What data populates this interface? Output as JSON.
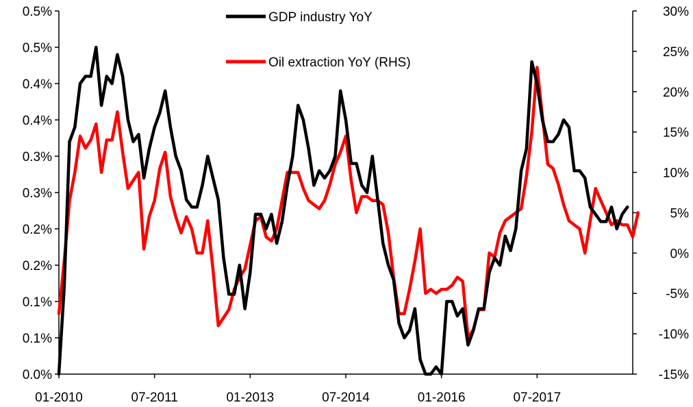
{
  "chart_data": {
    "type": "line",
    "title": "",
    "xlabel": "",
    "ylabel": "",
    "x_tick_labels": [
      "01-2010",
      "07-2011",
      "01-2013",
      "07-2014",
      "01-2016",
      "07-2017"
    ],
    "x_tick_months": [
      0,
      18,
      36,
      54,
      72,
      90
    ],
    "left_axis": {
      "tick_labels": [
        "0.0%",
        "0.1%",
        "0.1%",
        "0.2%",
        "0.2%",
        "0.3%",
        "0.3%",
        "0.4%",
        "0.4%",
        "0.5%",
        "0.5%"
      ],
      "ylim": [
        0,
        0.5
      ]
    },
    "right_axis": {
      "tick_labels": [
        "-15%",
        "-10%",
        "-5%",
        "0%",
        "5%",
        "10%",
        "15%",
        "20%",
        "25%",
        "30%"
      ],
      "ylim": [
        -15,
        30
      ]
    },
    "legend_position": "top-center",
    "series": [
      {
        "name": "GDP industry YoY",
        "axis": "left",
        "color": "#000000",
        "start_month": 0,
        "values": [
          0.0,
          0.12,
          0.32,
          0.34,
          0.4,
          0.41,
          0.41,
          0.45,
          0.37,
          0.41,
          0.4,
          0.44,
          0.41,
          0.35,
          0.32,
          0.33,
          0.27,
          0.31,
          0.34,
          0.36,
          0.39,
          0.34,
          0.3,
          0.28,
          0.24,
          0.23,
          0.23,
          0.26,
          0.3,
          0.27,
          0.24,
          0.16,
          0.11,
          0.11,
          0.15,
          0.09,
          0.14,
          0.22,
          0.22,
          0.2,
          0.22,
          0.18,
          0.21,
          0.26,
          0.3,
          0.37,
          0.35,
          0.31,
          0.26,
          0.28,
          0.27,
          0.28,
          0.3,
          0.39,
          0.35,
          0.29,
          0.29,
          0.26,
          0.25,
          0.3,
          0.24,
          0.18,
          0.15,
          0.13,
          0.07,
          0.05,
          0.06,
          0.09,
          0.02,
          0.0,
          0.0,
          0.01,
          0.0,
          0.1,
          0.1,
          0.08,
          0.09,
          0.04,
          0.06,
          0.09,
          0.09,
          0.14,
          0.16,
          0.15,
          0.19,
          0.17,
          0.2,
          0.28,
          0.31,
          0.43,
          0.4,
          0.35,
          0.32,
          0.32,
          0.33,
          0.35,
          0.34,
          0.28,
          0.28,
          0.27,
          0.23,
          0.22,
          0.21,
          0.21,
          0.23,
          0.2,
          0.22,
          0.23
        ]
      },
      {
        "name": "Oil extraction YoY (RHS)",
        "axis": "right",
        "color": "#ff0000",
        "start_month": 0,
        "values": [
          -7.5,
          -1.0,
          6.5,
          10.0,
          14.5,
          13.0,
          14.0,
          16.0,
          10.0,
          14.0,
          14.0,
          17.5,
          12.5,
          8.0,
          9.0,
          10.0,
          0.5,
          4.5,
          6.5,
          10.5,
          12.5,
          7.0,
          4.5,
          2.5,
          4.5,
          3.0,
          0.0,
          0.0,
          4.0,
          -2.0,
          -9.0,
          -8.0,
          -7.0,
          -4.5,
          -3.0,
          -2.0,
          1.0,
          4.0,
          4.5,
          2.0,
          1.5,
          3.0,
          6.5,
          10.0,
          10.0,
          10.0,
          8.0,
          6.5,
          6.0,
          5.5,
          6.5,
          8.5,
          11.0,
          12.5,
          14.5,
          9.0,
          5.0,
          7.0,
          7.0,
          6.5,
          6.5,
          6.0,
          2.5,
          -3.0,
          -7.5,
          -7.5,
          -4.5,
          -1.0,
          3.0,
          -5.0,
          -4.5,
          -5.0,
          -4.5,
          -4.5,
          -4.0,
          -3.0,
          -3.5,
          -10.5,
          -9.5,
          -7.0,
          -7.0,
          0.0,
          -0.5,
          2.5,
          4.0,
          4.5,
          5.0,
          5.5,
          9.5,
          15.0,
          23.0,
          17.0,
          11.0,
          10.5,
          8.5,
          6.0,
          4.0,
          3.5,
          3.0,
          0.0,
          4.0,
          8.0,
          6.5,
          5.0,
          3.5,
          4.0,
          3.5,
          3.5,
          2.0,
          5.0
        ]
      }
    ]
  }
}
